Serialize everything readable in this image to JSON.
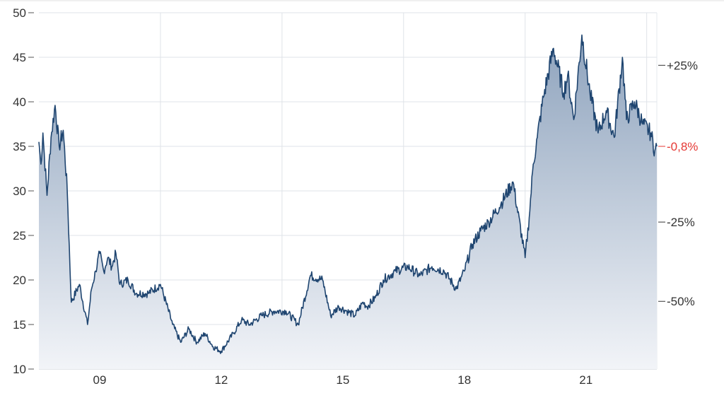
{
  "chart_data": {
    "type": "area",
    "title": "",
    "xlabel": "",
    "ylabel": "",
    "x_ticks": [
      "09",
      "12",
      "15",
      "18",
      "21"
    ],
    "x_range": [
      2007.5,
      2022.75
    ],
    "ylim": [
      10,
      50
    ],
    "y_ticks": [
      "10",
      "15",
      "20",
      "25",
      "30",
      "35",
      "40",
      "45",
      "50"
    ],
    "right_axis": [
      {
        "label": "+25%",
        "value": 44.1
      },
      {
        "label": "-0,8%",
        "value": 35.0,
        "highlight": true
      },
      {
        "label": "-25%",
        "value": 26.5
      },
      {
        "label": "-50%",
        "value": 17.6
      }
    ],
    "grid": true,
    "colors": {
      "line": "#1f4570",
      "fill_top": "#8ea3bd",
      "fill_bottom": "#f2f4f8",
      "highlight": "#e53935",
      "grid": "#dfe3e8",
      "axis_text": "#333333"
    },
    "x": [
      2007.5,
      2007.55,
      2007.6,
      2007.7,
      2007.8,
      2007.9,
      2008.0,
      2008.1,
      2008.2,
      2008.3,
      2008.5,
      2008.7,
      2008.8,
      2008.9,
      2009.0,
      2009.1,
      2009.2,
      2009.3,
      2009.4,
      2009.5,
      2009.7,
      2009.9,
      2010.2,
      2010.5,
      2010.8,
      2011.0,
      2011.2,
      2011.4,
      2011.6,
      2011.8,
      2012.0,
      2012.3,
      2012.5,
      2012.7,
      2013.0,
      2013.3,
      2013.6,
      2013.9,
      2014.2,
      2014.5,
      2014.7,
      2014.9,
      2015.1,
      2015.3,
      2015.5,
      2015.6,
      2015.8,
      2016.0,
      2016.3,
      2016.6,
      2016.9,
      2017.2,
      2017.5,
      2017.8,
      2018.0,
      2018.2,
      2018.4,
      2018.6,
      2018.9,
      2019.2,
      2019.5,
      2019.6,
      2019.7,
      2019.8,
      2019.95,
      2020.2,
      2020.45,
      2020.55,
      2020.7,
      2020.9,
      2021.1,
      2021.3,
      2021.5,
      2021.7,
      2021.9,
      2022.0,
      2022.2,
      2022.4,
      2022.6,
      2022.7,
      2022.75
    ],
    "values": [
      35.5,
      33.0,
      36.5,
      29.5,
      36.0,
      39.6,
      35.0,
      36.8,
      30.0,
      17.5,
      19.5,
      15.0,
      19.0,
      21.0,
      23.0,
      21.0,
      22.5,
      21.5,
      23.0,
      19.5,
      20.0,
      18.5,
      18.5,
      19.5,
      15.0,
      13.0,
      14.5,
      13.0,
      14.0,
      12.5,
      12.0,
      14.0,
      15.5,
      15.0,
      16.0,
      16.5,
      16.5,
      15.0,
      20.5,
      20.0,
      16.0,
      17.0,
      16.5,
      16.0,
      17.5,
      17.0,
      18.0,
      20.0,
      21.0,
      21.5,
      20.5,
      21.5,
      21.0,
      19.0,
      21.0,
      24.0,
      25.5,
      26.5,
      28.5,
      31.0,
      22.5,
      27.0,
      33.0,
      36.0,
      40.5,
      46.0,
      41.0,
      43.0,
      38.0,
      47.5,
      41.0,
      36.5,
      39.0,
      36.0,
      45.0,
      38.0,
      40.0,
      37.5,
      36.5,
      34.5,
      35.0
    ]
  }
}
